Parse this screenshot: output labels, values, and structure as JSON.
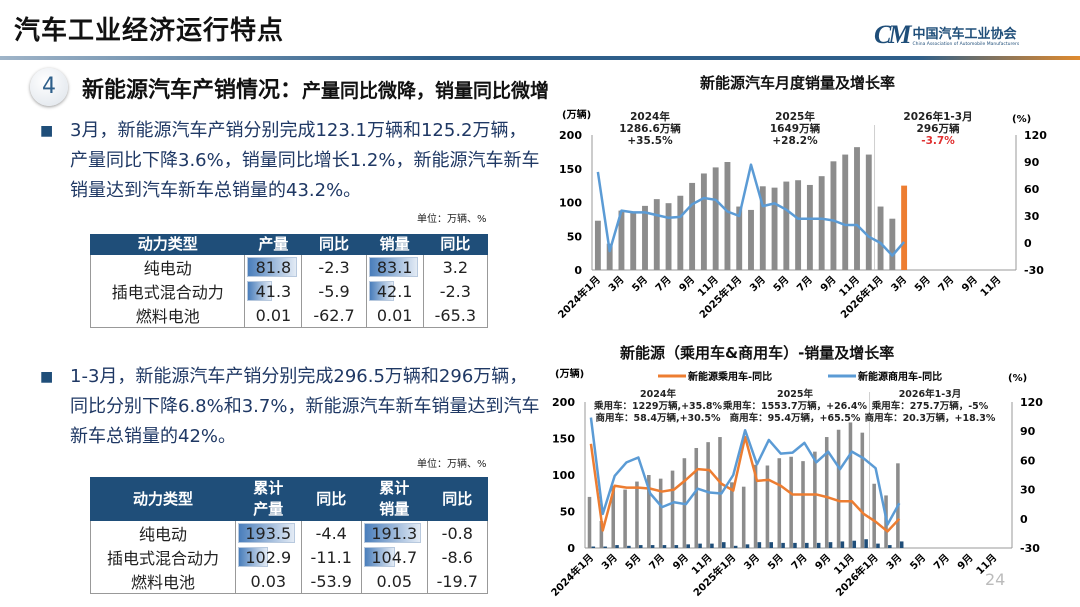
{
  "header": {
    "title": "汽车工业经济运行特点",
    "logo_cn": "中国汽车工业协会",
    "logo_en": "China Association of Automobile Manufacturers",
    "logo_mark": "CM"
  },
  "section": {
    "number": "4",
    "title": "新能源汽车产销情况：",
    "subtitle": "产量同比微降，销量同比微增"
  },
  "bullets": [
    {
      "text": "3月，新能源汽车产销分别完成123.1万辆和125.2万辆，产量同比下降3.6%，销量同比增长1.2%，新能源汽车新车销量达到汽车新车总销量的43.2%。"
    },
    {
      "text": "1-3月，新能源汽车产销分别完成296.5万辆和296万辆，同比分别下降6.8%和3.7%，新能源汽车新车销量达到汽车新车总销量的42%。"
    }
  ],
  "tables": [
    {
      "unit": "单位：万辆、%",
      "headers": [
        "动力类型",
        "产量",
        "同比",
        "销量",
        "同比"
      ],
      "rows": [
        [
          "纯电动",
          "81.8",
          "-2.3",
          "83.1",
          "3.2"
        ],
        [
          "插电式混合动力",
          "41.3",
          "-5.9",
          "42.1",
          "-2.3"
        ],
        [
          "燃料电池",
          "0.01",
          "-62.7",
          "0.01",
          "-65.3"
        ]
      ]
    },
    {
      "unit": "单位：万辆、%",
      "headers": [
        "动力类型",
        "累计\n产量",
        "同比",
        "累计\n销量",
        "同比"
      ],
      "rows": [
        [
          "纯电动",
          "193.5",
          "-4.4",
          "191.3",
          "-0.8"
        ],
        [
          "插电式混合动力",
          "102.9",
          "-11.1",
          "104.7",
          "-8.6"
        ],
        [
          "燃料电池",
          "0.03",
          "-53.9",
          "0.05",
          "-19.7"
        ]
      ]
    }
  ],
  "page_number": "24",
  "chart_data": [
    {
      "type": "bar+line",
      "title": "新能源汽车月度销量及增长率",
      "y_unit_left": "(万辆)",
      "y_unit_right": "(%)",
      "ylim_left": [
        0,
        200
      ],
      "ylim_right": [
        -30,
        120
      ],
      "yticks_left": [
        "0",
        "50",
        "100",
        "150",
        "200"
      ],
      "yticks_right": [
        "-30",
        "0",
        "30",
        "60",
        "90",
        "120"
      ],
      "xtick_labels": [
        "2024年1月",
        "3月",
        "5月",
        "7月",
        "9月",
        "11月",
        "2025年1月",
        "3月",
        "5月",
        "7月",
        "9月",
        "11月",
        "2026年1月",
        "3月",
        "5月",
        "7月",
        "9月",
        "11月"
      ],
      "months_total": 36,
      "annotations": [
        {
          "lines": [
            "2024年",
            "1286.6万辆",
            "+35.5%"
          ]
        },
        {
          "lines": [
            "2025年",
            "1649万辆",
            "+28.2%"
          ]
        },
        {
          "lines": [
            "2026年1-3月",
            "296万辆",
            "-3.7%"
          ],
          "highlight_color": "#e03030"
        }
      ],
      "colors": {
        "bar": "#8c8c8c",
        "bar_highlight": "#ed7d31",
        "line": "#5b9bd5"
      },
      "series": [
        {
          "kind": "bar",
          "axis": "left",
          "values": [
            73,
            39,
            88,
            85,
            95,
            105,
            99,
            110,
            129,
            143,
            152,
            160,
            94,
            89,
            124,
            122,
            131,
            133,
            126,
            139,
            161,
            171,
            182,
            171,
            94,
            76,
            125
          ]
        },
        {
          "kind": "line",
          "axis": "right",
          "values": [
            79,
            -9,
            36,
            34,
            34,
            31,
            28,
            29,
            43,
            50,
            48,
            35,
            30,
            87,
            41,
            44,
            37,
            27,
            27,
            27,
            25,
            20,
            20,
            7,
            0,
            -14,
            1.2
          ]
        }
      ]
    },
    {
      "type": "bar+line",
      "title": "新能源（乘用车&商用车）-销量及增长率",
      "y_unit_left": "(万辆)",
      "y_unit_right": "(%)",
      "ylim_left": [
        0,
        200
      ],
      "ylim_right": [
        -30,
        120
      ],
      "yticks_left": [
        "0",
        "50",
        "100",
        "150",
        "200"
      ],
      "yticks_right": [
        "-30",
        "0",
        "30",
        "60",
        "90",
        "120"
      ],
      "xtick_labels": [
        "2024年1月",
        "3月",
        "5月",
        "7月",
        "9月",
        "11月",
        "2025年1月",
        "3月",
        "5月",
        "7月",
        "9月",
        "11月",
        "2026年1月",
        "3月",
        "5月",
        "7月",
        "9月",
        "11月"
      ],
      "months_total": 36,
      "legend": [
        "新能源乘用车-同比",
        "新能源商用车-同比"
      ],
      "annotations": [
        {
          "lines": [
            "2024年",
            "乘用车：1229万辆,+35.8%",
            "商用车：58.4万辆,+30.5%"
          ]
        },
        {
          "lines": [
            "2025年",
            "乘用车：1553.7万辆，+26.4%",
            "商用车：95.4万辆，+65.5%"
          ]
        },
        {
          "lines": [
            "2026年1-3月",
            "乘用车：275.7万辆，-5%",
            "商用车：20.3万辆，+18.3%"
          ]
        }
      ],
      "colors": {
        "bar_passenger": "#8c8c8c",
        "bar_commercial": "#1f4e79",
        "line_passenger": "#ed7d31",
        "line_commercial": "#5b9bd5",
        "negative": "#e03030"
      },
      "series": [
        {
          "kind": "bar",
          "axis": "left",
          "values": [
            70,
            37,
            85,
            80,
            91,
            100,
            95,
            106,
            123,
            137,
            145,
            152,
            90,
            84,
            114,
            113,
            123,
            125,
            119,
            132,
            152,
            162,
            172,
            158,
            88,
            72,
            116
          ]
        },
        {
          "kind": "bar",
          "axis": "left",
          "values": [
            2,
            2,
            4,
            3,
            4,
            4,
            4,
            4,
            5,
            6,
            6,
            8,
            3,
            5,
            8,
            8,
            7,
            7,
            7,
            7,
            8,
            9,
            10,
            12,
            6,
            4,
            9
          ]
        },
        {
          "kind": "line",
          "axis": "right",
          "name": "新能源乘用车-同比",
          "values": [
            77,
            -12,
            34,
            32,
            32,
            31,
            28,
            30,
            40,
            51,
            50,
            36,
            29,
            84,
            39,
            40,
            34,
            25,
            25,
            25,
            22,
            18,
            18,
            5,
            -3,
            -13,
            0
          ]
        },
        {
          "kind": "line",
          "axis": "right",
          "name": "新能源商用车-同比",
          "values": [
            104,
            5,
            44,
            58,
            63,
            26,
            12,
            17,
            15,
            31,
            27,
            26,
            45,
            91,
            56,
            81,
            67,
            68,
            78,
            58,
            69,
            51,
            69,
            62,
            52,
            -6,
            16
          ]
        }
      ]
    }
  ]
}
